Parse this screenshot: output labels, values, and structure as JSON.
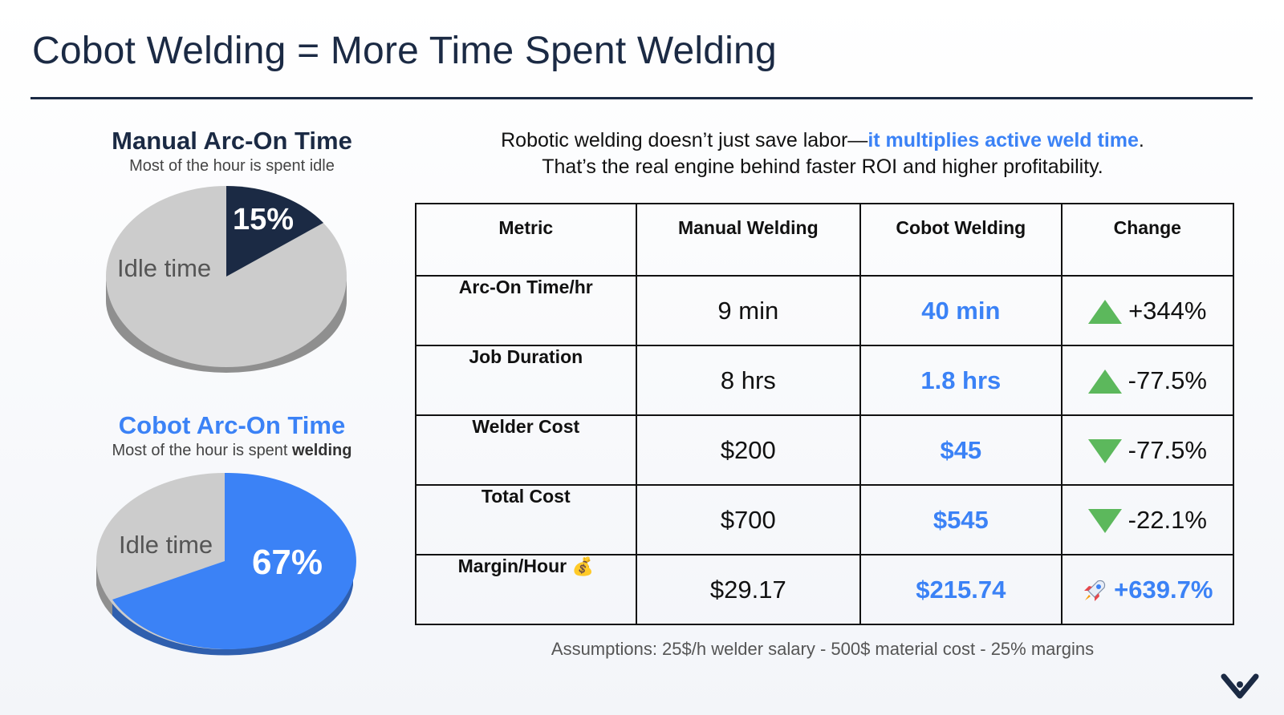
{
  "page": {
    "title": "Cobot Welding = More Time Spent Welding"
  },
  "colors": {
    "navy": "#1b2a44",
    "accent_blue": "#3b82f6",
    "idle_gray": "#cccccc",
    "up_green": "#5cb85c"
  },
  "manual_pie": {
    "title": "Manual Arc-On Time",
    "subtitle": "Most of the hour is spent idle",
    "active_percent_label": "15%",
    "active_fraction": 0.15,
    "idle_label": "Idle time",
    "active_color": "#1b2a44",
    "idle_color": "#cccccc"
  },
  "cobot_pie": {
    "title": "Cobot Arc-On Time",
    "subtitle_prefix": "Most of the hour is spent ",
    "subtitle_bold": "welding",
    "active_percent_label": "67%",
    "active_fraction": 0.67,
    "idle_label": "Idle time",
    "active_color": "#3b82f6",
    "idle_color": "#cccccc"
  },
  "intro": {
    "line1_prefix": "Robotic welding doesn’t just save labor—",
    "line1_highlight": "it multiplies active weld time",
    "line1_suffix": ".",
    "line2": "That’s the real engine behind faster ROI and higher profitability."
  },
  "table": {
    "headers": [
      "Metric",
      "Manual Welding",
      "Cobot Welding",
      "Change"
    ],
    "rows": [
      {
        "metric": "Arc-On Time/hr",
        "manual": "9 min",
        "cobot": "40 min",
        "change": "+344%",
        "change_icon": "green-triangle-up-icon"
      },
      {
        "metric": "Job Duration",
        "manual": "8 hrs",
        "cobot": "1.8 hrs",
        "change": "-77.5%",
        "change_icon": "green-triangle-up-icon"
      },
      {
        "metric": "Welder Cost",
        "manual": "$200",
        "cobot": "$45",
        "change": "-77.5%",
        "change_icon": "green-triangle-down-icon"
      },
      {
        "metric": "Total Cost",
        "manual": "$700",
        "cobot": "$545",
        "change": "-22.1%",
        "change_icon": "green-triangle-down-icon"
      },
      {
        "metric": "Margin/Hour",
        "metric_emoji": "💰",
        "manual": "$29.17",
        "cobot": "$215.74",
        "change": "+639.7%",
        "change_icon": "rocket-icon"
      }
    ]
  },
  "footnote": "Assumptions: 25$/h welder salary - 500$ material cost - 25% margins",
  "logo": {
    "icon": "chevron-check-logo-icon"
  }
}
